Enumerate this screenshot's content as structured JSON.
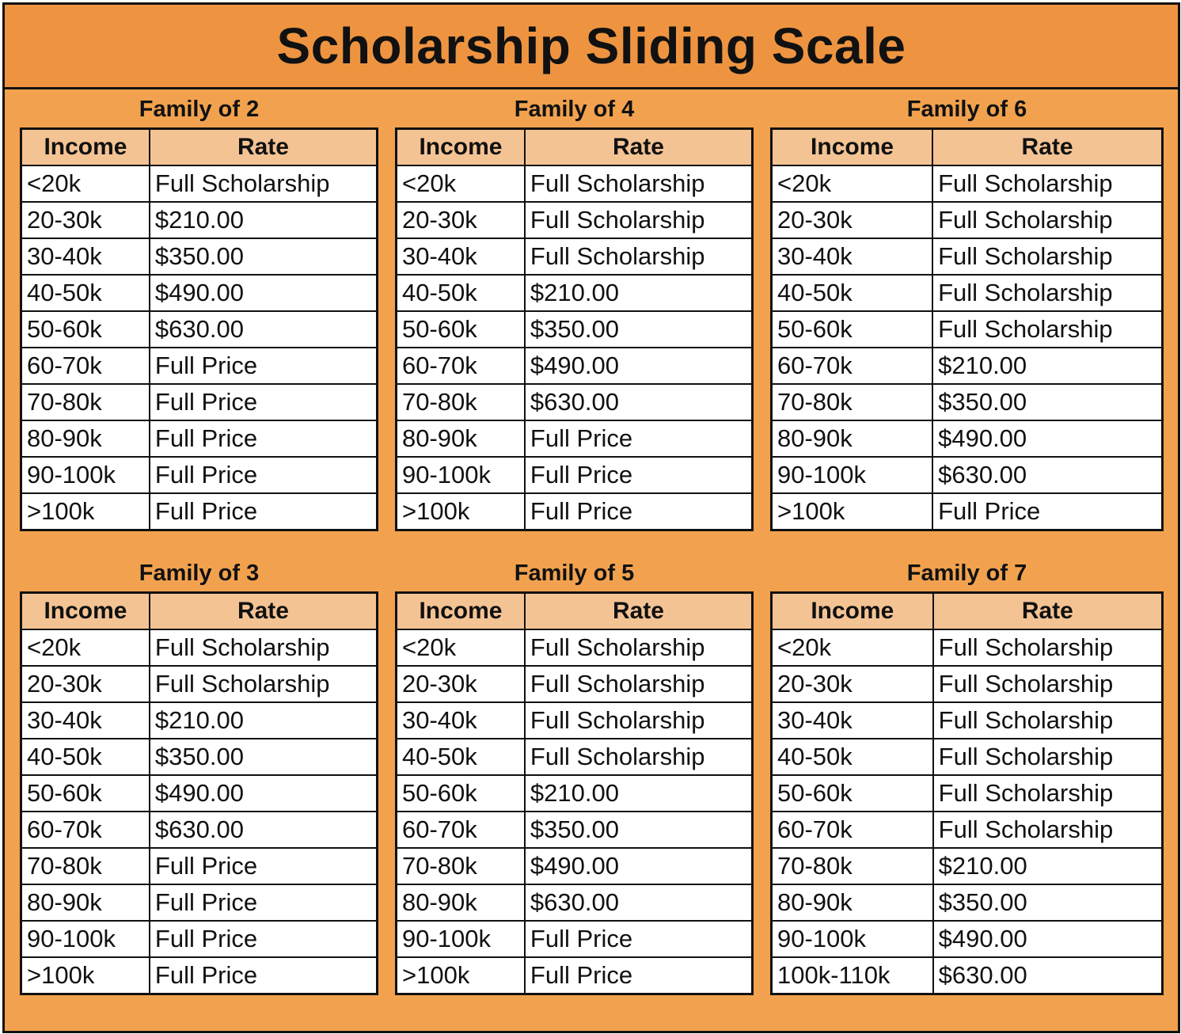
{
  "title": "Scholarship Sliding Scale",
  "header": {
    "income": "Income",
    "rate": "Rate"
  },
  "colors": {
    "frame": "#f2a24e",
    "title_bar": "#ee9441",
    "header_cell": "#f4c394",
    "border": "#111111"
  },
  "families": [
    {
      "label": "Family of 2",
      "rows": [
        {
          "income": "<20k",
          "rate": "Full Scholarship"
        },
        {
          "income": "20-30k",
          "rate": "$210.00"
        },
        {
          "income": "30-40k",
          "rate": "$350.00"
        },
        {
          "income": "40-50k",
          "rate": "$490.00"
        },
        {
          "income": "50-60k",
          "rate": "$630.00"
        },
        {
          "income": "60-70k",
          "rate": "Full Price"
        },
        {
          "income": "70-80k",
          "rate": "Full Price"
        },
        {
          "income": "80-90k",
          "rate": "Full Price"
        },
        {
          "income": "90-100k",
          "rate": "Full Price"
        },
        {
          "income": ">100k",
          "rate": "Full Price"
        }
      ]
    },
    {
      "label": "Family of 4",
      "rows": [
        {
          "income": "<20k",
          "rate": "Full Scholarship"
        },
        {
          "income": "20-30k",
          "rate": "Full Scholarship"
        },
        {
          "income": "30-40k",
          "rate": "Full Scholarship"
        },
        {
          "income": "40-50k",
          "rate": "$210.00"
        },
        {
          "income": "50-60k",
          "rate": "$350.00"
        },
        {
          "income": "60-70k",
          "rate": "$490.00"
        },
        {
          "income": "70-80k",
          "rate": "$630.00"
        },
        {
          "income": "80-90k",
          "rate": "Full Price"
        },
        {
          "income": "90-100k",
          "rate": "Full Price"
        },
        {
          "income": ">100k",
          "rate": "Full Price"
        }
      ]
    },
    {
      "label": "Family of 6",
      "rows": [
        {
          "income": "<20k",
          "rate": "Full Scholarship"
        },
        {
          "income": "20-30k",
          "rate": "Full Scholarship"
        },
        {
          "income": "30-40k",
          "rate": "Full Scholarship"
        },
        {
          "income": "40-50k",
          "rate": "Full Scholarship"
        },
        {
          "income": "50-60k",
          "rate": "Full Scholarship"
        },
        {
          "income": "60-70k",
          "rate": "$210.00"
        },
        {
          "income": "70-80k",
          "rate": "$350.00"
        },
        {
          "income": "80-90k",
          "rate": "$490.00"
        },
        {
          "income": "90-100k",
          "rate": "$630.00"
        },
        {
          "income": ">100k",
          "rate": "Full Price"
        }
      ]
    },
    {
      "label": "Family of 3",
      "rows": [
        {
          "income": "<20k",
          "rate": "Full Scholarship"
        },
        {
          "income": "20-30k",
          "rate": "Full Scholarship"
        },
        {
          "income": "30-40k",
          "rate": "$210.00"
        },
        {
          "income": "40-50k",
          "rate": "$350.00"
        },
        {
          "income": "50-60k",
          "rate": "$490.00"
        },
        {
          "income": "60-70k",
          "rate": "$630.00"
        },
        {
          "income": "70-80k",
          "rate": "Full Price"
        },
        {
          "income": "80-90k",
          "rate": "Full Price"
        },
        {
          "income": "90-100k",
          "rate": "Full Price"
        },
        {
          "income": ">100k",
          "rate": "Full Price"
        }
      ]
    },
    {
      "label": "Family of 5",
      "rows": [
        {
          "income": "<20k",
          "rate": "Full Scholarship"
        },
        {
          "income": "20-30k",
          "rate": "Full Scholarship"
        },
        {
          "income": "30-40k",
          "rate": "Full Scholarship"
        },
        {
          "income": "40-50k",
          "rate": "Full Scholarship"
        },
        {
          "income": "50-60k",
          "rate": "$210.00"
        },
        {
          "income": "60-70k",
          "rate": "$350.00"
        },
        {
          "income": "70-80k",
          "rate": "$490.00"
        },
        {
          "income": "80-90k",
          "rate": "$630.00"
        },
        {
          "income": "90-100k",
          "rate": "Full Price"
        },
        {
          "income": ">100k",
          "rate": "Full Price"
        }
      ]
    },
    {
      "label": "Family of 7",
      "rows": [
        {
          "income": "<20k",
          "rate": "Full Scholarship"
        },
        {
          "income": "20-30k",
          "rate": "Full Scholarship"
        },
        {
          "income": "30-40k",
          "rate": "Full Scholarship"
        },
        {
          "income": "40-50k",
          "rate": "Full Scholarship"
        },
        {
          "income": "50-60k",
          "rate": "Full Scholarship"
        },
        {
          "income": "60-70k",
          "rate": "Full Scholarship"
        },
        {
          "income": "70-80k",
          "rate": "$210.00"
        },
        {
          "income": "80-90k",
          "rate": "$350.00"
        },
        {
          "income": "90-100k",
          "rate": "$490.00"
        },
        {
          "income": "100k-110k",
          "rate": "$630.00"
        }
      ]
    }
  ]
}
